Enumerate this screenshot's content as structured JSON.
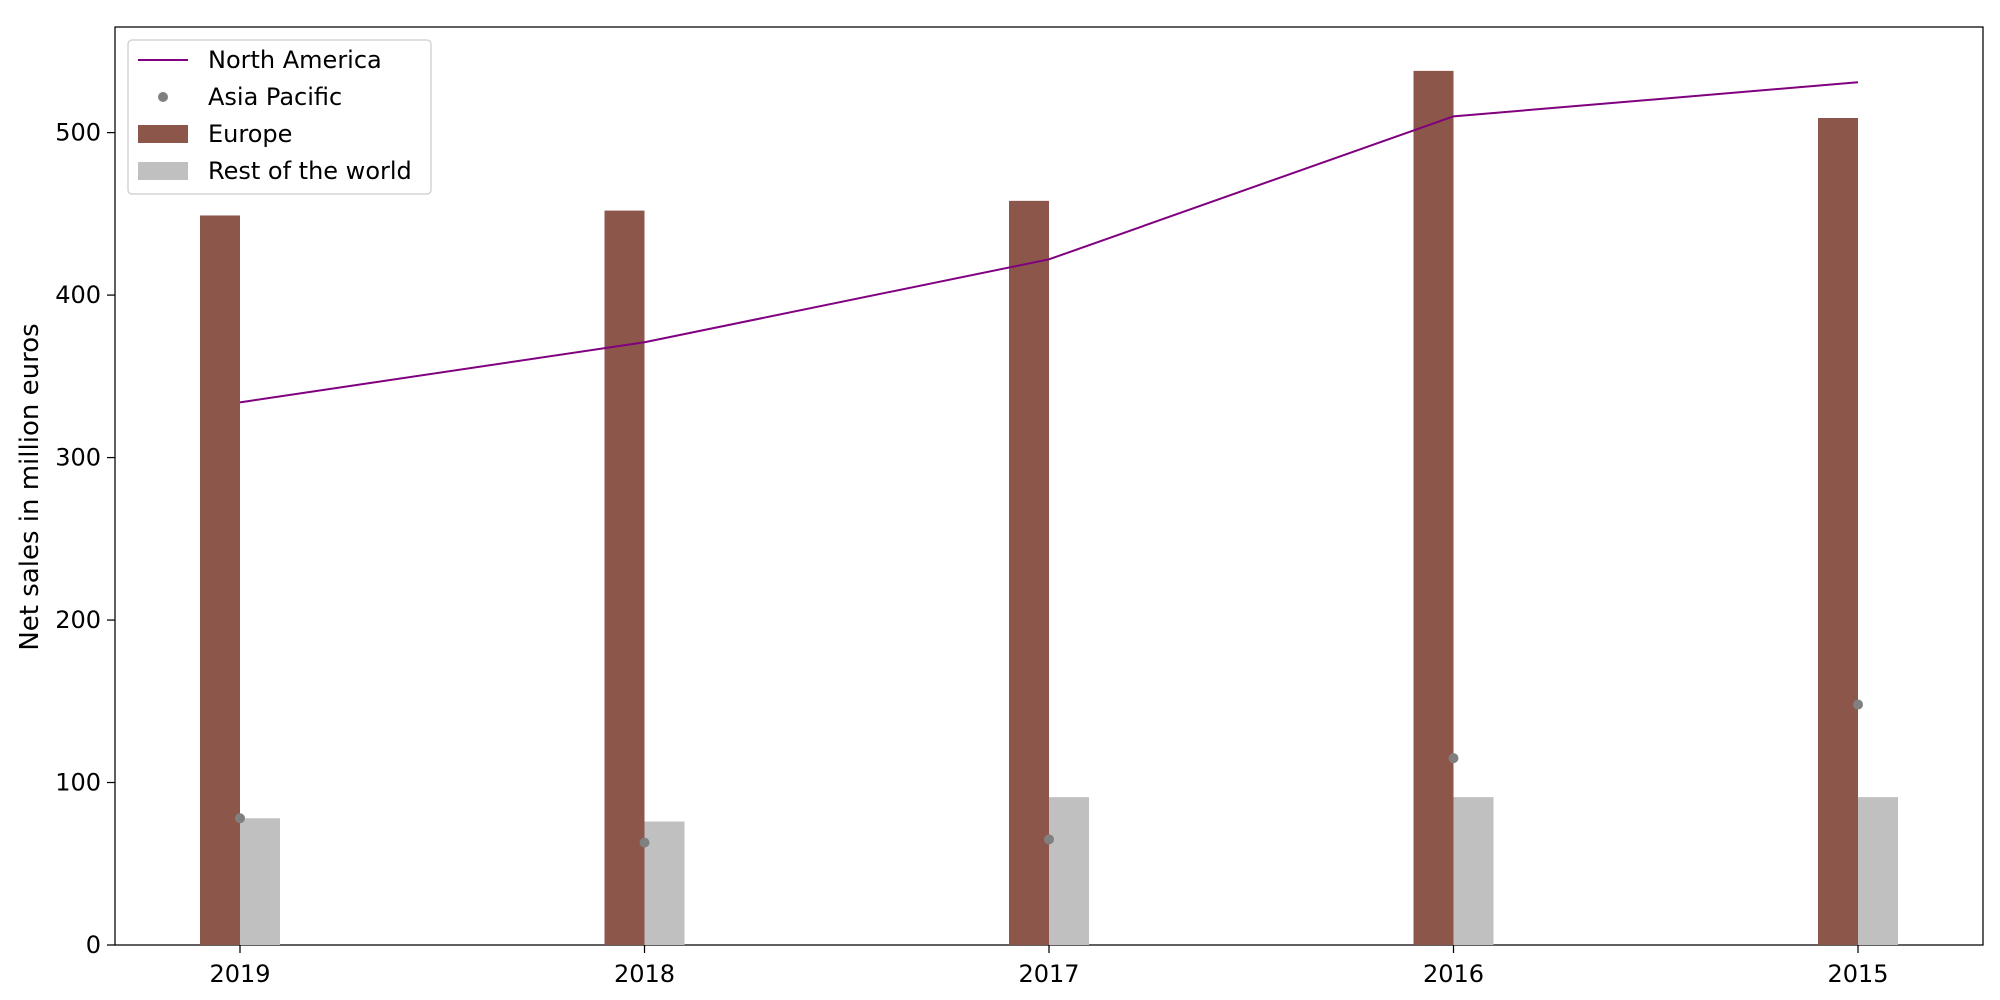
{
  "chart_data": {
    "type": "bar",
    "title": "",
    "xlabel": "",
    "ylabel": "Net sales in million euros",
    "categories": [
      "2019",
      "2018",
      "2017",
      "2016",
      "2015"
    ],
    "ylim": [
      0,
      565
    ],
    "yticks": [
      0,
      100,
      200,
      300,
      400,
      500
    ],
    "grid": false,
    "legend_position": "top-left",
    "series": [
      {
        "name": "North America",
        "kind": "line",
        "color": "#800080",
        "values": [
          334,
          371,
          422,
          510,
          531
        ]
      },
      {
        "name": "Asia Pacific",
        "kind": "scatter",
        "color": "#808080",
        "values": [
          78,
          63,
          65,
          115,
          148
        ]
      },
      {
        "name": "Europe",
        "kind": "bar",
        "color": "#8c564b",
        "values": [
          449,
          452,
          458,
          538,
          509
        ]
      },
      {
        "name": "Rest of the world",
        "kind": "bar",
        "color": "#c0c0c0",
        "values": [
          78,
          76,
          91,
          91,
          91
        ]
      }
    ]
  }
}
